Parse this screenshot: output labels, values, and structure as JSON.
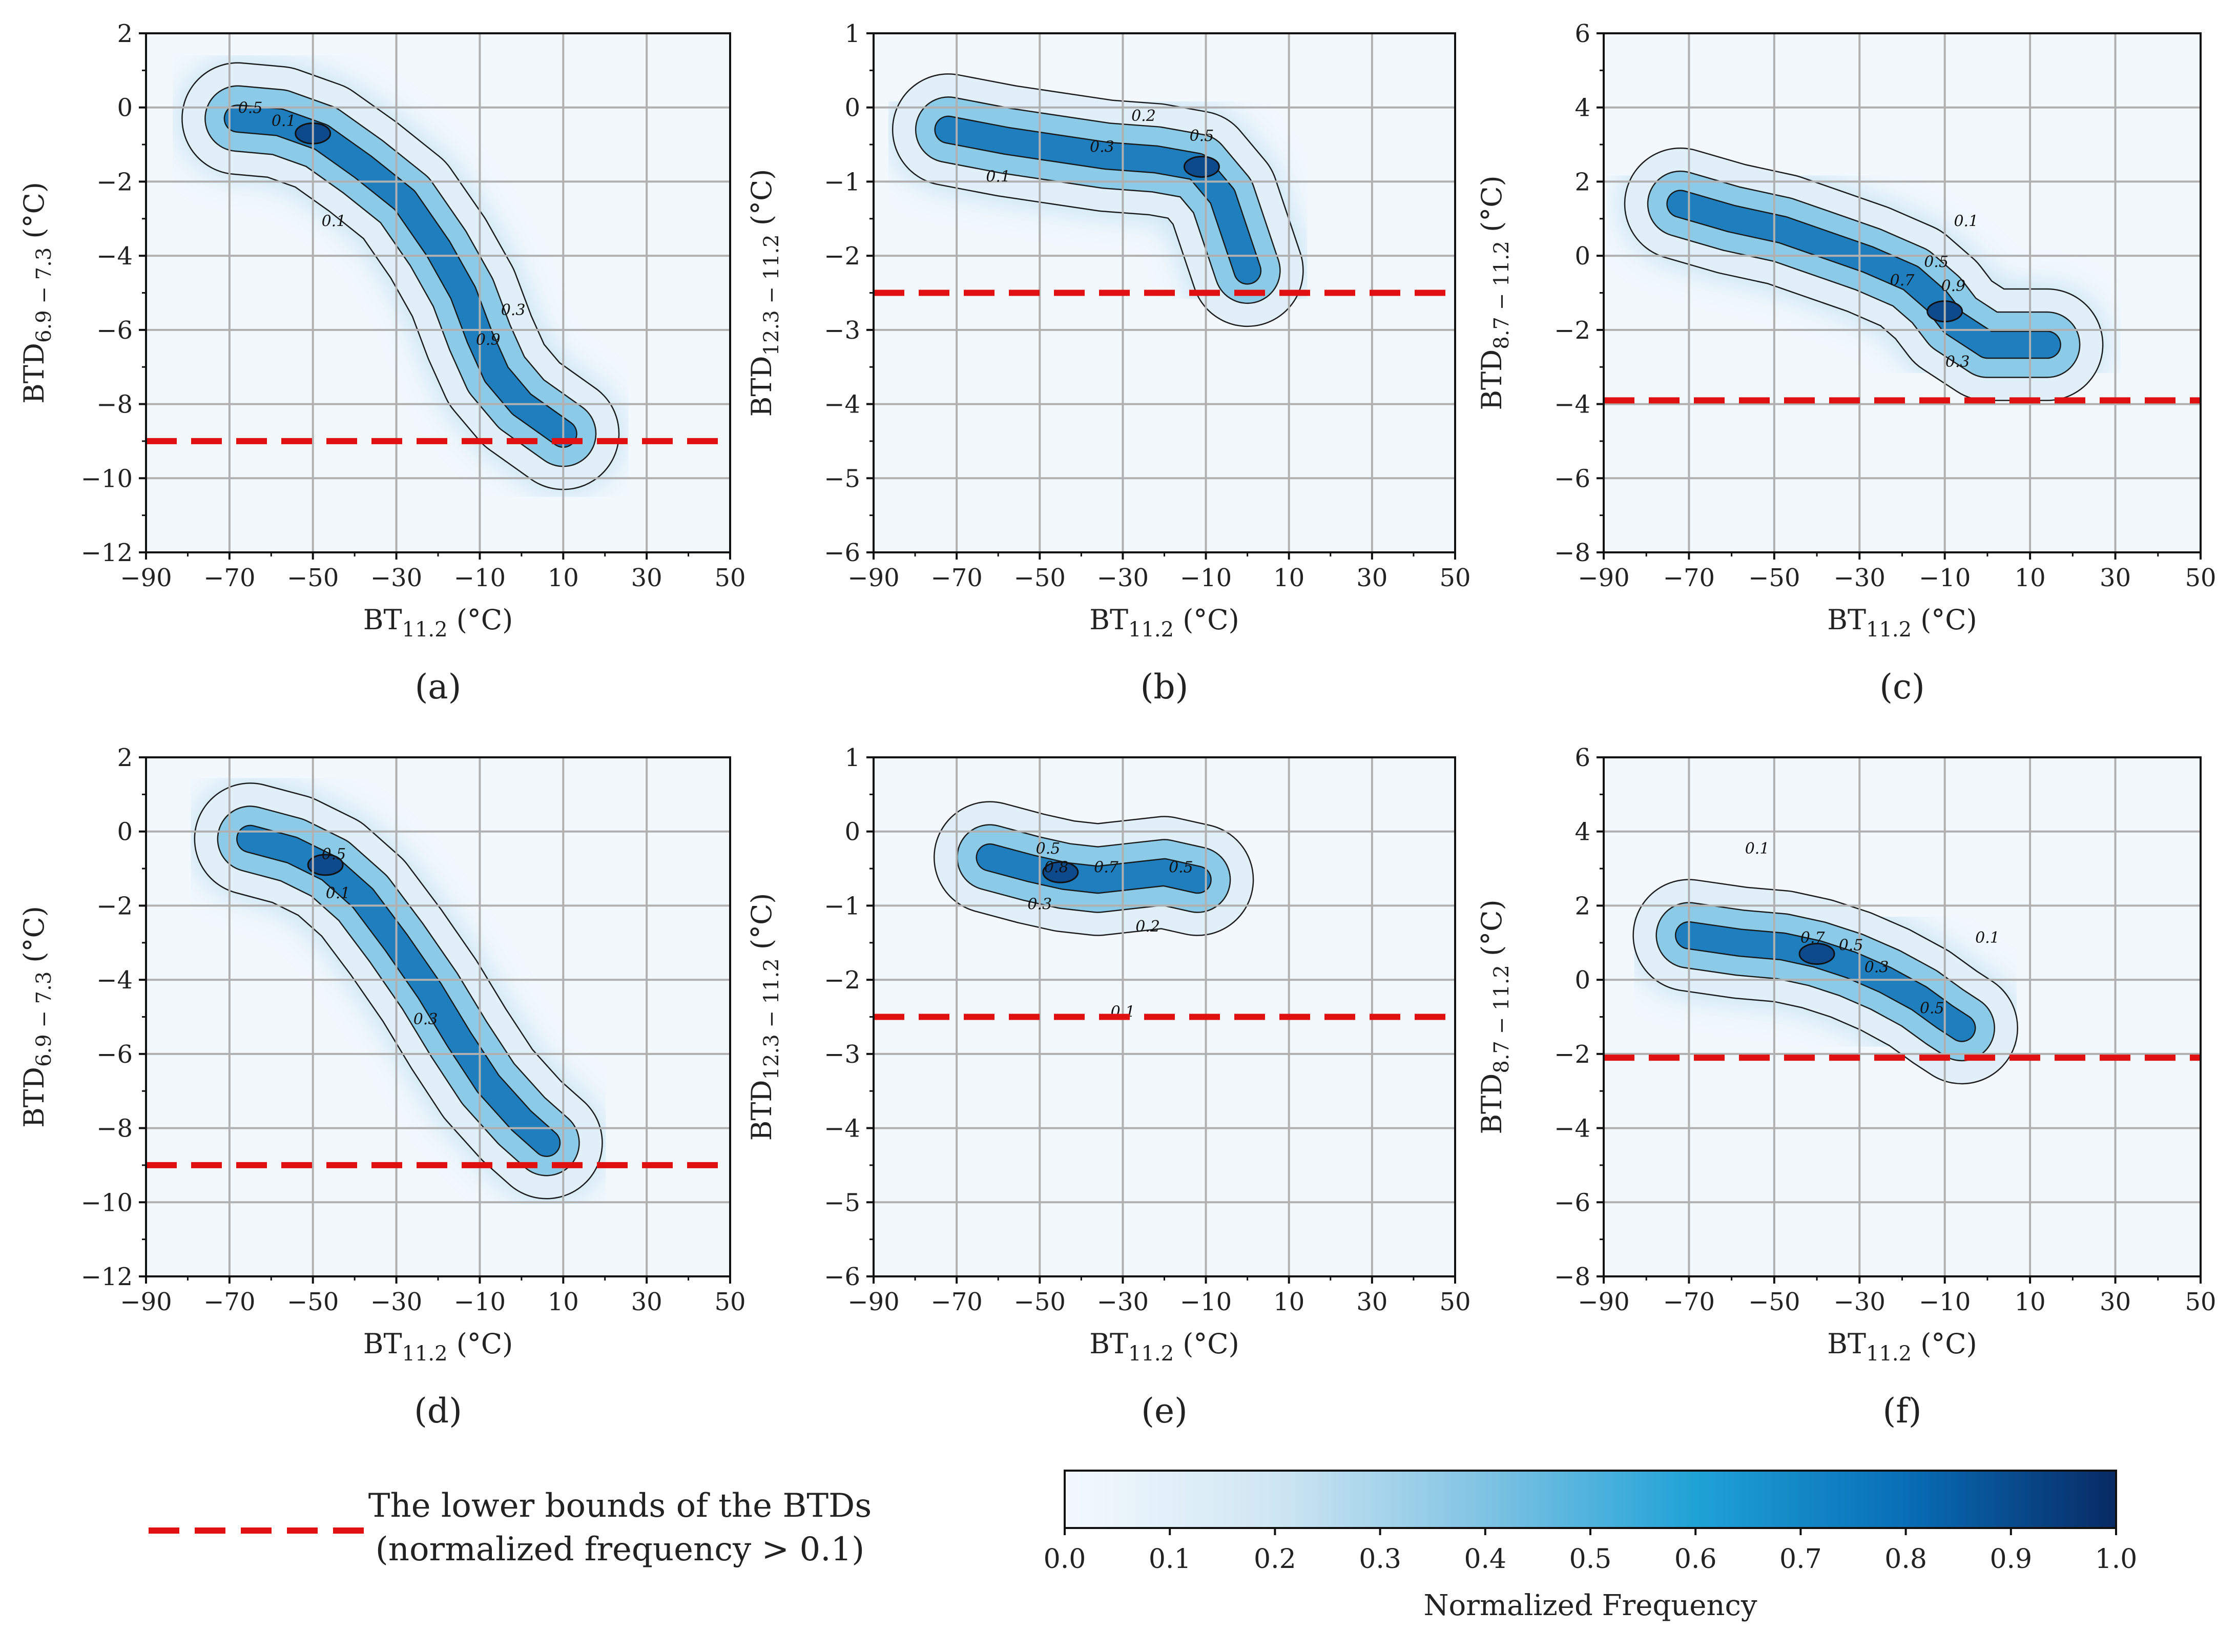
{
  "chart_data": [
    {
      "panel": "(a)",
      "type": "heatmap",
      "subtype": "2d-histogram-with-contours",
      "xlabel_main": "BT",
      "xlabel_sub": "11.2",
      "xlabel_unit": " (°C)",
      "ylabel_main": "BTD",
      "ylabel_sub": "6.9 − 7.3",
      "ylabel_unit": " (°C)",
      "xlim": [
        -90,
        50
      ],
      "ylim": [
        -12,
        2
      ],
      "xticks": [
        -90,
        -70,
        -50,
        -30,
        -10,
        10,
        30,
        50
      ],
      "yticks": [
        -12,
        -10,
        -8,
        -6,
        -4,
        -2,
        0,
        2
      ],
      "xtick_labels": [
        "−90",
        "−70",
        "−50",
        "−30",
        "−10",
        "10",
        "30",
        "50"
      ],
      "ytick_labels": [
        "−12",
        "−10",
        "−8",
        "−6",
        "−4",
        "−2",
        "0",
        "2"
      ],
      "lower_bound": -9,
      "density_path": [
        [
          -68,
          -0.3
        ],
        [
          -58,
          -0.4
        ],
        [
          -48,
          -0.8
        ],
        [
          -38,
          -1.6
        ],
        [
          -28,
          -2.5
        ],
        [
          -20,
          -3.8
        ],
        [
          -14,
          -5.0
        ],
        [
          -10,
          -6.2
        ],
        [
          -6,
          -7.2
        ],
        [
          0,
          -8.0
        ],
        [
          10,
          -8.8
        ]
      ],
      "density_peak": [
        -50,
        -0.7
      ],
      "contour_labels": [
        {
          "text": "0.5",
          "x": -65,
          "y": -0.15
        },
        {
          "text": "0.1",
          "x": -57,
          "y": -0.5
        },
        {
          "text": "0.1",
          "x": -45,
          "y": -3.2
        },
        {
          "text": "0.3",
          "x": -2,
          "y": -5.6
        },
        {
          "text": "0.9",
          "x": -8,
          "y": -6.4
        }
      ]
    },
    {
      "panel": "(b)",
      "type": "heatmap",
      "subtype": "2d-histogram-with-contours",
      "xlabel_main": "BT",
      "xlabel_sub": "11.2",
      "xlabel_unit": " (°C)",
      "ylabel_main": "BTD",
      "ylabel_sub": "12.3 − 11.2",
      "ylabel_unit": " (°C)",
      "xlim": [
        -90,
        50
      ],
      "ylim": [
        -6,
        1
      ],
      "xticks": [
        -90,
        -70,
        -50,
        -30,
        -10,
        10,
        30,
        50
      ],
      "yticks": [
        -6,
        -5,
        -4,
        -3,
        -2,
        -1,
        0,
        1
      ],
      "xtick_labels": [
        "−90",
        "−70",
        "−50",
        "−30",
        "−10",
        "10",
        "30",
        "50"
      ],
      "ytick_labels": [
        "−6",
        "−5",
        "−4",
        "−3",
        "−2",
        "−1",
        "0",
        "1"
      ],
      "lower_bound": -2.5,
      "density_path": [
        [
          -72,
          -0.3
        ],
        [
          -58,
          -0.45
        ],
        [
          -46,
          -0.55
        ],
        [
          -34,
          -0.65
        ],
        [
          -22,
          -0.7
        ],
        [
          -12,
          -0.8
        ],
        [
          -6,
          -1.2
        ],
        [
          0,
          -2.2
        ]
      ],
      "density_peak": [
        -11,
        -0.8
      ],
      "contour_labels": [
        {
          "text": "0.2",
          "x": -25,
          "y": -0.18
        },
        {
          "text": "0.3",
          "x": -35,
          "y": -0.6
        },
        {
          "text": "0.5",
          "x": -11,
          "y": -0.45
        },
        {
          "text": "0.1",
          "x": -60,
          "y": -1.0
        }
      ]
    },
    {
      "panel": "(c)",
      "type": "heatmap",
      "subtype": "2d-histogram-with-contours",
      "xlabel_main": "BT",
      "xlabel_sub": "11.2",
      "xlabel_unit": " (°C)",
      "ylabel_main": "BTD",
      "ylabel_sub": "8.7 − 11.2",
      "ylabel_unit": " (°C)",
      "xlim": [
        -90,
        50
      ],
      "ylim": [
        -8,
        6
      ],
      "xticks": [
        -90,
        -70,
        -50,
        -30,
        -10,
        10,
        30,
        50
      ],
      "yticks": [
        -8,
        -6,
        -4,
        -2,
        0,
        2,
        4,
        6
      ],
      "xtick_labels": [
        "−90",
        "−70",
        "−50",
        "−30",
        "−10",
        "10",
        "30",
        "50"
      ],
      "ytick_labels": [
        "−8",
        "−6",
        "−4",
        "−2",
        "0",
        "2",
        "4",
        "6"
      ],
      "lower_bound": -3.9,
      "density_path": [
        [
          -72,
          1.4
        ],
        [
          -60,
          1.0
        ],
        [
          -48,
          0.7
        ],
        [
          -38,
          0.3
        ],
        [
          -28,
          -0.1
        ],
        [
          -18,
          -0.6
        ],
        [
          -12,
          -1.2
        ],
        [
          -8,
          -1.8
        ],
        [
          0,
          -2.4
        ],
        [
          14,
          -2.4
        ]
      ],
      "density_peak": [
        -10,
        -1.5
      ],
      "contour_labels": [
        {
          "text": "0.1",
          "x": -5,
          "y": 0.8
        },
        {
          "text": "0.5",
          "x": -12,
          "y": -0.3
        },
        {
          "text": "0.7",
          "x": -20,
          "y": -0.8
        },
        {
          "text": "0.9",
          "x": -8,
          "y": -0.95
        },
        {
          "text": "0.3",
          "x": -7,
          "y": -3.0
        }
      ]
    },
    {
      "panel": "(d)",
      "type": "heatmap",
      "subtype": "2d-histogram-with-contours",
      "xlabel_main": "BT",
      "xlabel_sub": "11.2",
      "xlabel_unit": " (°C)",
      "ylabel_main": "BTD",
      "ylabel_sub": "6.9 − 7.3",
      "ylabel_unit": " (°C)",
      "xlim": [
        -90,
        50
      ],
      "ylim": [
        -12,
        2
      ],
      "xticks": [
        -90,
        -70,
        -50,
        -30,
        -10,
        10,
        30,
        50
      ],
      "yticks": [
        -12,
        -10,
        -8,
        -6,
        -4,
        -2,
        0,
        2
      ],
      "xtick_labels": [
        "−90",
        "−70",
        "−50",
        "−30",
        "−10",
        "10",
        "30",
        "50"
      ],
      "ytick_labels": [
        "−12",
        "−10",
        "−8",
        "−6",
        "−4",
        "−2",
        "0",
        "2"
      ],
      "lower_bound": -9,
      "density_path": [
        [
          -65,
          -0.2
        ],
        [
          -55,
          -0.5
        ],
        [
          -46,
          -1.0
        ],
        [
          -38,
          -1.8
        ],
        [
          -30,
          -3.0
        ],
        [
          -22,
          -4.3
        ],
        [
          -15,
          -5.6
        ],
        [
          -8,
          -6.8
        ],
        [
          0,
          -7.8
        ],
        [
          6,
          -8.4
        ]
      ],
      "density_peak": [
        -47,
        -0.9
      ],
      "contour_labels": [
        {
          "text": "0.1",
          "x": -44,
          "y": -1.8
        },
        {
          "text": "0.3",
          "x": -23,
          "y": -5.2
        },
        {
          "text": "0.5",
          "x": -45,
          "y": -0.75
        }
      ]
    },
    {
      "panel": "(e)",
      "type": "heatmap",
      "subtype": "2d-histogram-with-contours",
      "xlabel_main": "BT",
      "xlabel_sub": "11.2",
      "xlabel_unit": " (°C)",
      "ylabel_main": "BTD",
      "ylabel_sub": "12.3 − 11.2",
      "ylabel_unit": " (°C)",
      "xlim": [
        -90,
        50
      ],
      "ylim": [
        -6,
        1
      ],
      "xticks": [
        -90,
        -70,
        -50,
        -30,
        -10,
        10,
        30,
        50
      ],
      "yticks": [
        -6,
        -5,
        -4,
        -3,
        -2,
        -1,
        0,
        1
      ],
      "xtick_labels": [
        "−90",
        "−70",
        "−50",
        "−30",
        "−10",
        "10",
        "30",
        "50"
      ],
      "ytick_labels": [
        "−6",
        "−5",
        "−4",
        "−3",
        "−2",
        "−1",
        "0",
        "1"
      ],
      "lower_bound": -2.5,
      "density_path": [
        [
          -62,
          -0.35
        ],
        [
          -52,
          -0.5
        ],
        [
          -44,
          -0.6
        ],
        [
          -36,
          -0.65
        ],
        [
          -28,
          -0.6
        ],
        [
          -20,
          -0.55
        ],
        [
          -12,
          -0.65
        ]
      ],
      "density_peak": [
        -45,
        -0.55
      ],
      "contour_labels": [
        {
          "text": "0.5",
          "x": -48,
          "y": -0.3
        },
        {
          "text": "0.8",
          "x": -46,
          "y": -0.55
        },
        {
          "text": "0.7",
          "x": -34,
          "y": -0.55
        },
        {
          "text": "0.5",
          "x": -16,
          "y": -0.55
        },
        {
          "text": "0.3",
          "x": -50,
          "y": -1.05
        },
        {
          "text": "0.2",
          "x": -24,
          "y": -1.35
        },
        {
          "text": "0.1",
          "x": -30,
          "y": -2.5
        }
      ]
    },
    {
      "panel": "(f)",
      "type": "heatmap",
      "subtype": "2d-histogram-with-contours",
      "xlabel_main": "BT",
      "xlabel_sub": "11.2",
      "xlabel_unit": " (°C)",
      "ylabel_main": "BTD",
      "ylabel_sub": "8.7 − 11.2",
      "ylabel_unit": " (°C)",
      "xlim": [
        -90,
        50
      ],
      "ylim": [
        -8,
        6
      ],
      "xticks": [
        -90,
        -70,
        -50,
        -30,
        -10,
        10,
        30,
        50
      ],
      "yticks": [
        -8,
        -6,
        -4,
        -2,
        0,
        2,
        4,
        6
      ],
      "xtick_labels": [
        "−90",
        "−70",
        "−50",
        "−30",
        "−10",
        "10",
        "30",
        "50"
      ],
      "ytick_labels": [
        "−8",
        "−6",
        "−4",
        "−2",
        "0",
        "2",
        "4",
        "6"
      ],
      "lower_bound": -2.1,
      "density_path": [
        [
          -70,
          1.2
        ],
        [
          -58,
          1.0
        ],
        [
          -48,
          0.9
        ],
        [
          -40,
          0.7
        ],
        [
          -32,
          0.4
        ],
        [
          -24,
          0.0
        ],
        [
          -16,
          -0.5
        ],
        [
          -10,
          -1.0
        ],
        [
          -6,
          -1.3
        ]
      ],
      "density_peak": [
        -40,
        0.7
      ],
      "contour_labels": [
        {
          "text": "0.1",
          "x": -54,
          "y": 3.4
        },
        {
          "text": "0.7",
          "x": -41,
          "y": 1.0
        },
        {
          "text": "0.5",
          "x": -32,
          "y": 0.8
        },
        {
          "text": "0.3",
          "x": -26,
          "y": 0.2
        },
        {
          "text": "0.1",
          "x": 0,
          "y": 1.0
        },
        {
          "text": "0.5",
          "x": -13,
          "y": -0.9
        }
      ]
    }
  ],
  "legend": {
    "line_label_1": "The lower bounds of the BTDs",
    "line_label_2": "(normalized frequency > 0.1)",
    "line_color": "#e01010"
  },
  "colorbar": {
    "title": "Normalized Frequency",
    "range": [
      0.0,
      1.0
    ],
    "ticks": [
      "0.0",
      "0.1",
      "0.2",
      "0.3",
      "0.4",
      "0.5",
      "0.6",
      "0.7",
      "0.8",
      "0.9",
      "1.0"
    ],
    "colors": [
      "#f4f9fe",
      "#cfe6f3",
      "#7fc3e3",
      "#1fa2d6",
      "#086eb7",
      "#082a64"
    ]
  },
  "colors": {
    "background": "#f3f8fd",
    "grid": "#b0b0b0",
    "contour": "#111111",
    "bound_line": "#e01010"
  }
}
